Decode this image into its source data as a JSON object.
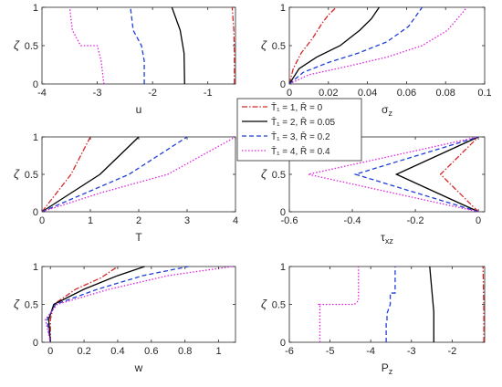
{
  "legend": {
    "entries": [
      {
        "label": "T̄₁ = 1, R̄ = 0",
        "color": "#d62728",
        "dash": "dashdot"
      },
      {
        "label": "T̄₁ = 2, R̄ = 0.05",
        "color": "#000000",
        "dash": "solid"
      },
      {
        "label": "T̄₁ = 3, R̄ = 0.2",
        "color": "#1f3fd6",
        "dash": "dashed"
      },
      {
        "label": "T̄₁ = 4, R̄ = 0.4",
        "color": "#e020e0",
        "dash": "dotted"
      }
    ]
  },
  "chart_data": [
    {
      "type": "line",
      "xlabel": "u",
      "ylabel": "ζ",
      "xlim": [
        -4,
        -0.5
      ],
      "ylim": [
        0,
        1
      ],
      "xticks": [
        -4,
        -3,
        -2,
        -1
      ],
      "xtick_labels": [
        "-4",
        "-3",
        "-2",
        "-1"
      ],
      "yticks": [
        0,
        0.5,
        1
      ],
      "ytick_labels": [
        "0",
        "0.5",
        "1"
      ],
      "series": [
        {
          "points": [
            [
              -0.52,
              0
            ],
            [
              -0.52,
              0.4
            ],
            [
              -0.53,
              0.7
            ],
            [
              -0.56,
              1
            ]
          ]
        },
        {
          "points": [
            [
              -1.42,
              0
            ],
            [
              -1.43,
              0.4
            ],
            [
              -1.5,
              0.7
            ],
            [
              -1.65,
              1
            ]
          ]
        },
        {
          "points": [
            [
              -2.15,
              0
            ],
            [
              -2.15,
              0.3
            ],
            [
              -2.2,
              0.5
            ],
            [
              -2.35,
              0.7
            ],
            [
              -2.4,
              1
            ]
          ]
        },
        {
          "points": [
            [
              -2.88,
              0
            ],
            [
              -2.93,
              0.3
            ],
            [
              -3.0,
              0.5
            ],
            [
              -3.3,
              0.5
            ],
            [
              -3.45,
              0.7
            ],
            [
              -3.5,
              1
            ]
          ]
        }
      ]
    },
    {
      "type": "line",
      "xlabel": "σz",
      "ylabel": "ζ",
      "xlim": [
        0,
        0.1
      ],
      "ylim": [
        0,
        1
      ],
      "xticks": [
        0,
        0.02,
        0.04,
        0.06,
        0.08,
        0.1
      ],
      "xtick_labels": [
        "0",
        "0.02",
        "0.04",
        "0.06",
        "0.08",
        "0.1"
      ],
      "yticks": [
        0,
        0.5,
        1
      ],
      "ytick_labels": [
        "0",
        "0.5",
        "1"
      ],
      "series": [
        {
          "points": [
            [
              0,
              0
            ],
            [
              0.002,
              0.2
            ],
            [
              0.006,
              0.4
            ],
            [
              0.012,
              0.6
            ],
            [
              0.017,
              0.8
            ],
            [
              0.02,
              0.9
            ],
            [
              0.024,
              1
            ]
          ]
        },
        {
          "points": [
            [
              0,
              0
            ],
            [
              0.005,
              0.2
            ],
            [
              0.014,
              0.35
            ],
            [
              0.026,
              0.5
            ],
            [
              0.036,
              0.7
            ],
            [
              0.042,
              0.85
            ],
            [
              0.046,
              1
            ]
          ]
        },
        {
          "points": [
            [
              0,
              0
            ],
            [
              0.007,
              0.15
            ],
            [
              0.02,
              0.28
            ],
            [
              0.035,
              0.4
            ],
            [
              0.05,
              0.55
            ],
            [
              0.061,
              0.75
            ],
            [
              0.068,
              1
            ]
          ]
        },
        {
          "points": [
            [
              0,
              0
            ],
            [
              0.01,
              0.12
            ],
            [
              0.028,
              0.22
            ],
            [
              0.05,
              0.35
            ],
            [
              0.068,
              0.5
            ],
            [
              0.081,
              0.7
            ],
            [
              0.091,
              1
            ]
          ]
        }
      ]
    },
    {
      "type": "line",
      "xlabel": "T",
      "ylabel": "ζ",
      "xlim": [
        0,
        4
      ],
      "ylim": [
        0,
        1
      ],
      "xticks": [
        0,
        1,
        2,
        3,
        4
      ],
      "xtick_labels": [
        "0",
        "1",
        "2",
        "3",
        "4"
      ],
      "yticks": [
        0,
        0.5,
        1
      ],
      "ytick_labels": [
        "0",
        "0.5",
        "1"
      ],
      "series": [
        {
          "points": [
            [
              0,
              0
            ],
            [
              0.3,
              0.25
            ],
            [
              0.6,
              0.5
            ],
            [
              0.8,
              0.75
            ],
            [
              1,
              1
            ]
          ]
        },
        {
          "points": [
            [
              0,
              0
            ],
            [
              0.6,
              0.25
            ],
            [
              1.2,
              0.5
            ],
            [
              1.6,
              0.75
            ],
            [
              2,
              1
            ]
          ]
        },
        {
          "points": [
            [
              0,
              0
            ],
            [
              0.9,
              0.25
            ],
            [
              1.8,
              0.5
            ],
            [
              2.4,
              0.75
            ],
            [
              3,
              1
            ]
          ]
        },
        {
          "points": [
            [
              0,
              0
            ],
            [
              1.2,
              0.25
            ],
            [
              2.6,
              0.5
            ],
            [
              3.3,
              0.75
            ],
            [
              4,
              1
            ]
          ]
        }
      ]
    },
    {
      "type": "line",
      "xlabel": "τxz",
      "ylabel": "ζ",
      "xlim": [
        -0.6,
        0.02
      ],
      "ylim": [
        0,
        1
      ],
      "xticks": [
        -0.6,
        -0.4,
        -0.2,
        0
      ],
      "xtick_labels": [
        "-0.6",
        "-0.4",
        "-0.2",
        "0"
      ],
      "yticks": [
        0,
        0.5,
        1
      ],
      "ytick_labels": [
        "0",
        "0.5",
        "1"
      ],
      "series": [
        {
          "points": [
            [
              0,
              0
            ],
            [
              -0.12,
              0.5
            ],
            [
              0,
              1
            ]
          ]
        },
        {
          "points": [
            [
              0,
              0
            ],
            [
              -0.26,
              0.5
            ],
            [
              0,
              1
            ]
          ]
        },
        {
          "points": [
            [
              0,
              0
            ],
            [
              -0.39,
              0.5
            ],
            [
              0,
              1
            ]
          ]
        },
        {
          "points": [
            [
              0,
              0
            ],
            [
              -0.54,
              0.5
            ],
            [
              0,
              1
            ]
          ]
        }
      ]
    },
    {
      "type": "line",
      "xlabel": "w",
      "ylabel": "ζ",
      "xlim": [
        -0.05,
        1.1
      ],
      "ylim": [
        0,
        1
      ],
      "xticks": [
        0,
        0.2,
        0.4,
        0.6,
        0.8,
        1
      ],
      "xtick_labels": [
        "0",
        "0.2",
        "0.4",
        "0.6",
        "0.8",
        "1"
      ],
      "yticks": [
        0,
        0.5,
        1
      ],
      "ytick_labels": [
        "0",
        "0.5",
        "1"
      ],
      "series": [
        {
          "points": [
            [
              0,
              0
            ],
            [
              0,
              0.3
            ],
            [
              0.02,
              0.5
            ],
            [
              0.15,
              0.7
            ],
            [
              0.3,
              0.85
            ],
            [
              0.4,
              1
            ]
          ]
        },
        {
          "points": [
            [
              0,
              0
            ],
            [
              -0.01,
              0.3
            ],
            [
              0.02,
              0.5
            ],
            [
              0.2,
              0.7
            ],
            [
              0.4,
              0.88
            ],
            [
              0.56,
              1
            ]
          ]
        },
        {
          "points": [
            [
              0,
              0
            ],
            [
              -0.02,
              0.3
            ],
            [
              0.03,
              0.5
            ],
            [
              0.28,
              0.7
            ],
            [
              0.55,
              0.88
            ],
            [
              0.82,
              1
            ]
          ]
        },
        {
          "points": [
            [
              0,
              0
            ],
            [
              -0.03,
              0.3
            ],
            [
              0.04,
              0.5
            ],
            [
              0.35,
              0.7
            ],
            [
              0.7,
              0.88
            ],
            [
              1.08,
              1
            ]
          ]
        }
      ]
    },
    {
      "type": "line",
      "xlabel": "Pz",
      "ylabel": "ζ",
      "xlim": [
        -6,
        -1.2
      ],
      "ylim": [
        0,
        1
      ],
      "xticks": [
        -6,
        -5,
        -4,
        -3,
        -2
      ],
      "xtick_labels": [
        "-6",
        "-5",
        "-4",
        "-3",
        "-2"
      ],
      "yticks": [
        0,
        0.5,
        1
      ],
      "ytick_labels": [
        "0",
        "0.5",
        "1"
      ],
      "series": [
        {
          "points": [
            [
              -1.22,
              0
            ],
            [
              -1.22,
              0.4
            ],
            [
              -1.23,
              0.7
            ],
            [
              -1.24,
              1
            ]
          ]
        },
        {
          "points": [
            [
              -2.45,
              0
            ],
            [
              -2.45,
              0.4
            ],
            [
              -2.5,
              0.7
            ],
            [
              -2.55,
              1
            ]
          ]
        },
        {
          "points": [
            [
              -3.62,
              0
            ],
            [
              -3.62,
              0.25
            ],
            [
              -3.6,
              0.28
            ],
            [
              -3.6,
              0.38
            ],
            [
              -3.52,
              0.5
            ],
            [
              -3.52,
              0.65
            ],
            [
              -3.4,
              0.65
            ],
            [
              -3.4,
              1
            ]
          ]
        },
        {
          "points": [
            [
              -5.25,
              0
            ],
            [
              -5.25,
              0.5
            ],
            [
              -5.3,
              0.5
            ],
            [
              -4.4,
              0.5
            ],
            [
              -4.3,
              0.55
            ],
            [
              -4.3,
              1
            ]
          ]
        }
      ]
    }
  ]
}
